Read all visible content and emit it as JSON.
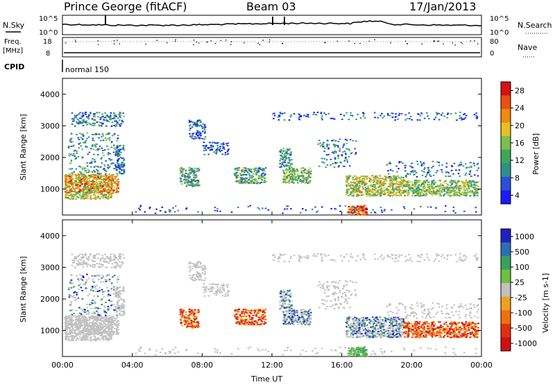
{
  "header": {
    "station": "Prince George (fitACF)",
    "beam": "Beam 03",
    "date": "17/Jan/2013"
  },
  "panels": {
    "nsky_label": "N.Sky",
    "nsearch_label": "N.Search",
    "nsky_ticks": [
      "10^5",
      "10^0"
    ],
    "nsearch_ticks": [
      "10^5",
      "10^0"
    ],
    "freq_label": "Freq.",
    "freq_unit": "[MHz]",
    "freq_ticks": [
      "18",
      "8"
    ],
    "nave_label": "Nave",
    "nave_ticks": [
      "80",
      "0"
    ],
    "cpid_label": "CPID",
    "cpid_value": "normal 150"
  },
  "chart_data": [
    {
      "type": "heatmap",
      "name": "power",
      "ylabel": "Slant Range [km]",
      "ylim": [
        180,
        4500
      ],
      "yticks": [
        1000,
        2000,
        3000,
        4000
      ],
      "colorbar": {
        "label": "Power [dB]",
        "ticks": [
          4,
          8,
          12,
          16,
          20,
          24,
          28
        ],
        "range": [
          0,
          30
        ]
      },
      "grid": false
    },
    {
      "type": "heatmap",
      "name": "velocity",
      "ylabel": "Slant Range [km]",
      "xlabel": "Time UT",
      "ylim": [
        180,
        4500
      ],
      "yticks": [
        1000,
        2000,
        3000,
        4000
      ],
      "xticks": [
        "00:00",
        "04:00",
        "08:00",
        "12:00",
        "16:00",
        "20:00",
        "00:00"
      ],
      "colorbar": {
        "label": "Velocity [m s-1]",
        "ticks": [
          "1000",
          "500",
          "100",
          "25",
          "-25",
          "-100",
          "-500",
          "-1000"
        ]
      },
      "grid": false
    }
  ],
  "colors": {
    "power_scale": [
      "#1a1aff",
      "#2d4fd6",
      "#2f8f8f",
      "#3da65a",
      "#78c050",
      "#e8c020",
      "#f08a10",
      "#e85010",
      "#d81010"
    ],
    "velocity_scale": [
      "#2020c0",
      "#2a70b0",
      "#3aa060",
      "#70c040",
      "#c0c0c0",
      "#f0a020",
      "#f07010",
      "#e03010",
      "#d01010"
    ]
  }
}
